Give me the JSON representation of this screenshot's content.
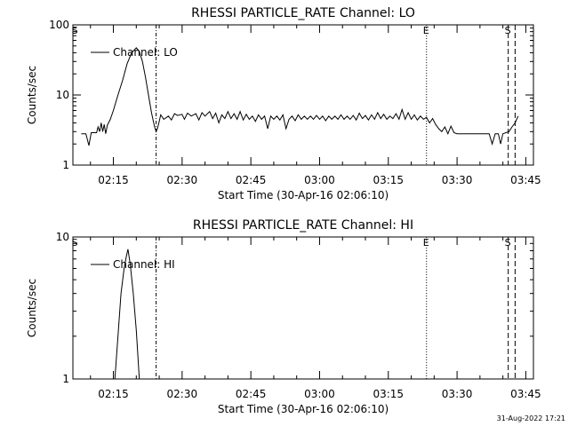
{
  "footer": {
    "timestamp": "31-Aug-2022 17:21"
  },
  "chart_data": [
    {
      "type": "line",
      "title": "RHESSI PARTICLE_RATE Channel: LO",
      "xlabel": "Start Time (30-Apr-16 02:06:10)",
      "ylabel": "Counts/sec",
      "yscale": "log",
      "ylim": [
        1,
        100
      ],
      "xlim": [
        "02:06:10",
        "03:46:40"
      ],
      "x_ticks": [
        "02:15",
        "02:30",
        "02:45",
        "03:00",
        "03:15",
        "03:30",
        "03:45"
      ],
      "y_ticks": [
        "1",
        "10",
        "100"
      ],
      "legend": {
        "position": "top-left"
      },
      "markers": [
        {
          "label": "S",
          "time": "02:06:40",
          "style": "none"
        },
        {
          "label": "",
          "time": "02:24:20",
          "style": "dash-dot"
        },
        {
          "label": "E",
          "time": "03:23:20",
          "style": "dotted"
        },
        {
          "label": "S",
          "time": "03:41:10",
          "style": "dashed"
        },
        {
          "label": "",
          "time": "03:42:40",
          "style": "dashed"
        }
      ],
      "series": [
        {
          "name": "Channel: LO",
          "points": [
            [
              "02:08:00",
              2.8
            ],
            [
              "02:09:00",
              2.8
            ],
            [
              "02:09:40",
              1.9
            ],
            [
              "02:10:10",
              2.9
            ],
            [
              "02:11:20",
              2.9
            ],
            [
              "02:11:40",
              3.5
            ],
            [
              "02:12:00",
              3.0
            ],
            [
              "02:12:20",
              4.0
            ],
            [
              "02:12:40",
              3.0
            ],
            [
              "02:13:00",
              3.8
            ],
            [
              "02:13:20",
              2.8
            ],
            [
              "02:13:40",
              3.7
            ],
            [
              "02:14:20",
              4.5
            ],
            [
              "02:15:00",
              6
            ],
            [
              "02:16:00",
              10
            ],
            [
              "02:17:00",
              16
            ],
            [
              "02:18:00",
              28
            ],
            [
              "02:19:00",
              40
            ],
            [
              "02:20:00",
              47
            ],
            [
              "02:20:40",
              42
            ],
            [
              "02:21:20",
              30
            ],
            [
              "02:22:00",
              18
            ],
            [
              "02:22:40",
              10
            ],
            [
              "02:23:20",
              5.5
            ],
            [
              "02:24:00",
              3.5
            ],
            [
              "02:24:20",
              3.0
            ],
            [
              "02:24:40",
              3.4
            ],
            [
              "02:25:20",
              5.2
            ],
            [
              "02:26:00",
              4.5
            ],
            [
              "02:27:00",
              5.0
            ],
            [
              "02:27:40",
              4.4
            ],
            [
              "02:28:20",
              5.4
            ],
            [
              "02:29:00",
              5.1
            ],
            [
              "02:30:00",
              5.3
            ],
            [
              "02:30:30",
              4.5
            ],
            [
              "02:31:10",
              5.5
            ],
            [
              "02:32:00",
              5.0
            ],
            [
              "02:33:00",
              5.4
            ],
            [
              "02:33:40",
              4.4
            ],
            [
              "02:34:20",
              5.6
            ],
            [
              "02:35:00",
              5.0
            ],
            [
              "02:36:00",
              5.8
            ],
            [
              "02:36:40",
              4.6
            ],
            [
              "02:37:20",
              5.5
            ],
            [
              "02:38:00",
              4.0
            ],
            [
              "02:38:40",
              5.2
            ],
            [
              "02:39:20",
              4.6
            ],
            [
              "02:40:00",
              5.8
            ],
            [
              "02:40:40",
              4.6
            ],
            [
              "02:41:20",
              5.4
            ],
            [
              "02:42:00",
              4.5
            ],
            [
              "02:42:40",
              5.8
            ],
            [
              "02:43:20",
              4.4
            ],
            [
              "02:44:00",
              5.3
            ],
            [
              "02:44:40",
              4.5
            ],
            [
              "02:45:20",
              5.0
            ],
            [
              "02:46:00",
              4.2
            ],
            [
              "02:46:40",
              5.2
            ],
            [
              "02:47:20",
              4.5
            ],
            [
              "02:48:00",
              5.0
            ],
            [
              "02:48:40",
              3.3
            ],
            [
              "02:49:20",
              5.0
            ],
            [
              "02:50:00",
              4.5
            ],
            [
              "02:50:40",
              5.0
            ],
            [
              "02:51:20",
              4.4
            ],
            [
              "02:52:00",
              5.2
            ],
            [
              "02:52:40",
              3.3
            ],
            [
              "02:53:20",
              4.5
            ],
            [
              "02:54:00",
              5.0
            ],
            [
              "02:54:40",
              4.3
            ],
            [
              "02:55:20",
              5.2
            ],
            [
              "02:56:00",
              4.5
            ],
            [
              "02:56:40",
              5.0
            ],
            [
              "02:57:20",
              4.5
            ],
            [
              "02:58:00",
              5.0
            ],
            [
              "02:58:40",
              4.5
            ],
            [
              "02:59:20",
              5.1
            ],
            [
              "03:00:00",
              4.5
            ],
            [
              "03:00:40",
              5.0
            ],
            [
              "03:01:20",
              4.3
            ],
            [
              "03:02:00",
              5.0
            ],
            [
              "03:02:40",
              4.5
            ],
            [
              "03:03:20",
              5.0
            ],
            [
              "03:04:00",
              4.5
            ],
            [
              "03:04:40",
              5.2
            ],
            [
              "03:05:20",
              4.5
            ],
            [
              "03:06:00",
              5.0
            ],
            [
              "03:06:40",
              4.5
            ],
            [
              "03:07:20",
              5.1
            ],
            [
              "03:08:00",
              4.4
            ],
            [
              "03:08:40",
              5.5
            ],
            [
              "03:09:20",
              4.6
            ],
            [
              "03:10:00",
              5.1
            ],
            [
              "03:10:40",
              4.4
            ],
            [
              "03:11:20",
              5.2
            ],
            [
              "03:12:00",
              4.5
            ],
            [
              "03:12:40",
              5.6
            ],
            [
              "03:13:20",
              4.6
            ],
            [
              "03:14:00",
              5.3
            ],
            [
              "03:14:40",
              4.5
            ],
            [
              "03:15:20",
              5.0
            ],
            [
              "03:16:00",
              4.6
            ],
            [
              "03:16:40",
              5.4
            ],
            [
              "03:17:20",
              4.5
            ],
            [
              "03:18:00",
              6.2
            ],
            [
              "03:18:40",
              4.5
            ],
            [
              "03:19:20",
              5.6
            ],
            [
              "03:20:00",
              4.5
            ],
            [
              "03:20:40",
              5.2
            ],
            [
              "03:21:20",
              4.4
            ],
            [
              "03:22:00",
              5.0
            ],
            [
              "03:22:40",
              4.5
            ],
            [
              "03:23:20",
              4.8
            ],
            [
              "03:24:00",
              4.0
            ],
            [
              "03:24:40",
              4.6
            ],
            [
              "03:25:20",
              3.8
            ],
            [
              "03:26:00",
              3.3
            ],
            [
              "03:26:40",
              3.0
            ],
            [
              "03:27:20",
              3.5
            ],
            [
              "03:28:00",
              2.8
            ],
            [
              "03:28:40",
              3.6
            ],
            [
              "03:29:20",
              2.9
            ],
            [
              "03:30:00",
              2.8
            ],
            [
              "03:31:00",
              2.8
            ],
            [
              "03:32:00",
              2.8
            ],
            [
              "03:33:00",
              2.8
            ],
            [
              "03:34:00",
              2.8
            ],
            [
              "03:35:00",
              2.8
            ],
            [
              "03:36:00",
              2.8
            ],
            [
              "03:37:00",
              2.8
            ],
            [
              "03:37:40",
              2.0
            ],
            [
              "03:38:20",
              2.8
            ],
            [
              "03:39:00",
              2.8
            ],
            [
              "03:39:30",
              2.0
            ],
            [
              "03:40:00",
              2.8
            ],
            [
              "03:40:40",
              2.9
            ],
            [
              "03:41:20",
              3.0
            ],
            [
              "03:42:00",
              3.5
            ],
            [
              "03:42:40",
              4.0
            ],
            [
              "03:43:20",
              5.0
            ]
          ]
        }
      ]
    },
    {
      "type": "line",
      "title": "RHESSI PARTICLE_RATE Channel: HI",
      "xlabel": "Start Time (30-Apr-16 02:06:10)",
      "ylabel": "Counts/sec",
      "yscale": "log",
      "ylim": [
        1,
        10
      ],
      "xlim": [
        "02:06:10",
        "03:46:40"
      ],
      "x_ticks": [
        "02:15",
        "02:30",
        "02:45",
        "03:00",
        "03:15",
        "03:30",
        "03:45"
      ],
      "y_ticks": [
        "1",
        "10"
      ],
      "legend": {
        "position": "top-left"
      },
      "markers": [
        {
          "label": "S",
          "time": "02:06:40",
          "style": "none"
        },
        {
          "label": "",
          "time": "02:24:20",
          "style": "dash-dot"
        },
        {
          "label": "E",
          "time": "03:23:20",
          "style": "dotted"
        },
        {
          "label": "S",
          "time": "03:41:10",
          "style": "dashed"
        },
        {
          "label": "",
          "time": "03:42:40",
          "style": "dashed"
        }
      ],
      "series": [
        {
          "name": "Channel: HI",
          "points": [
            [
              "02:15:20",
              1.0
            ],
            [
              "02:16:00",
              2.0
            ],
            [
              "02:16:40",
              4.0
            ],
            [
              "02:17:20",
              6.0
            ],
            [
              "02:17:50",
              7.3
            ],
            [
              "02:18:10",
              8.2
            ],
            [
              "02:18:40",
              6.5
            ],
            [
              "02:19:20",
              4.0
            ],
            [
              "02:20:00",
              2.2
            ],
            [
              "02:20:40",
              1.0
            ]
          ]
        }
      ]
    }
  ]
}
